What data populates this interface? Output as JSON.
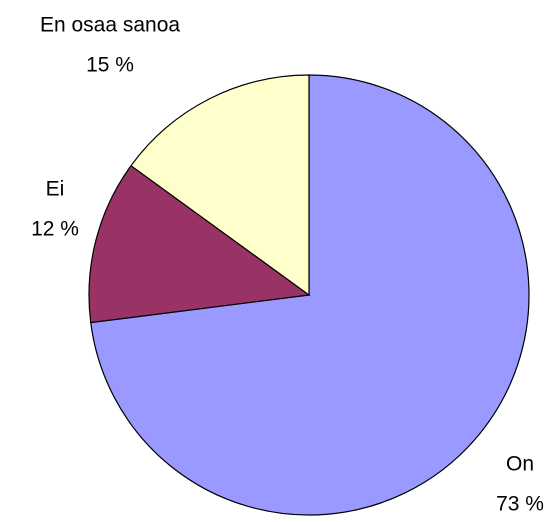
{
  "chart_data": {
    "type": "pie",
    "categories": [
      "On",
      "Ei",
      "En osaa sanoa"
    ],
    "values": [
      73,
      12,
      15
    ],
    "value_labels": [
      "73 %",
      "12 %",
      "15 %"
    ],
    "colors": [
      "#9999ff",
      "#993366",
      "#ffffcc"
    ]
  }
}
